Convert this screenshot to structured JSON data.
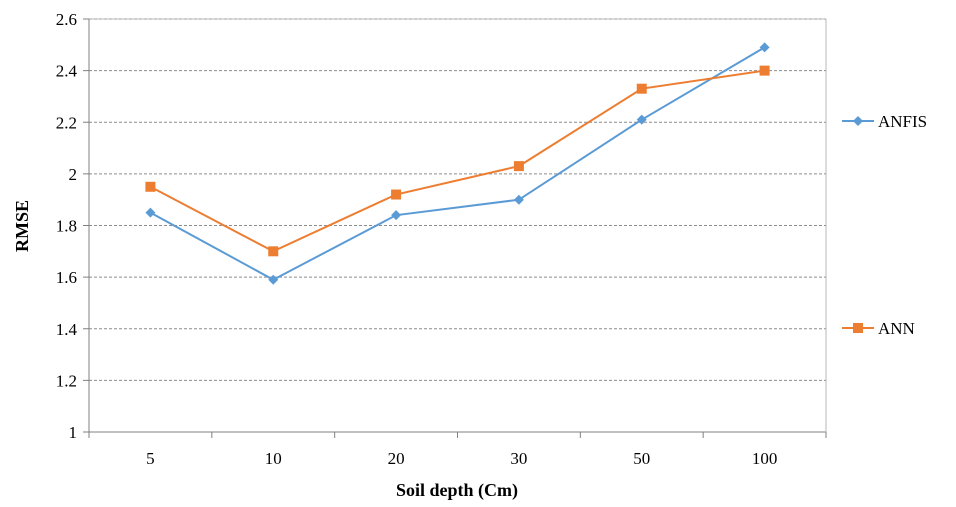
{
  "chart_data": {
    "type": "line",
    "title": "",
    "xlabel": "Soil depth (Cm)",
    "ylabel": "RMSE",
    "categories": [
      "5",
      "10",
      "20",
      "30",
      "50",
      "100"
    ],
    "ylim": [
      1,
      2.6
    ],
    "yticks": [
      "1",
      "1.2",
      "1.4",
      "1.6",
      "1.8",
      "2",
      "2.2",
      "2.4",
      "2.6"
    ],
    "grid": "horizontal-dashed",
    "legend_position": "right",
    "series": [
      {
        "name": "ANFIS",
        "values": [
          1.85,
          1.59,
          1.84,
          1.9,
          2.21,
          2.49
        ],
        "color": "#5B9BD5",
        "marker": "diamond"
      },
      {
        "name": "ANN",
        "values": [
          1.95,
          1.7,
          1.92,
          2.03,
          2.33,
          2.4
        ],
        "color": "#ED7D31",
        "marker": "square"
      }
    ]
  }
}
